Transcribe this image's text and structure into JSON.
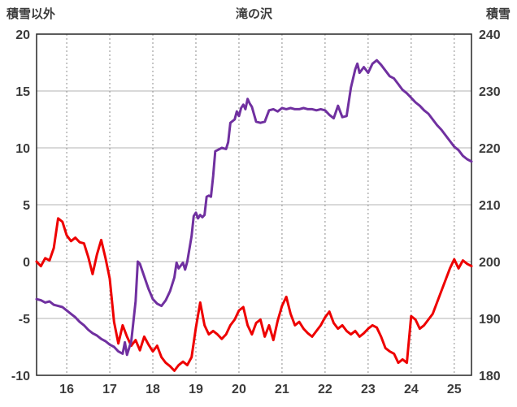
{
  "header": {
    "left_axis_title": "積雪以外",
    "chart_title": "滝の沢",
    "right_axis_title": "積雪"
  },
  "chart_data": {
    "type": "line",
    "title": "滝の沢",
    "left_axis": {
      "label": "積雪以外",
      "ticks": [
        20,
        15,
        10,
        5,
        0,
        -5,
        -10
      ],
      "range": [
        -10,
        20
      ]
    },
    "right_axis": {
      "label": "積雪",
      "ticks": [
        240,
        230,
        220,
        210,
        200,
        190,
        180
      ],
      "range": [
        180,
        240
      ]
    },
    "x_axis": {
      "ticks": [
        16,
        17,
        18,
        19,
        20,
        21,
        22,
        23,
        24,
        25
      ],
      "range": [
        15.3,
        25.4
      ]
    },
    "grid": {
      "horizontal": "solid",
      "vertical": "dashed"
    },
    "style": {
      "h_grid": "#b3b3b3",
      "v_grid": "#8c8c8c",
      "border": "#262626",
      "text": "#3b3b3b",
      "background": "#ffffff"
    },
    "series": [
      {
        "name": "積雪以外",
        "axis": "left",
        "color": "#ee0000",
        "x_start": 15.3,
        "x_step": 0.1,
        "values": [
          0.0,
          -0.4,
          0.3,
          0.1,
          1.2,
          3.8,
          3.5,
          2.3,
          1.8,
          2.1,
          1.7,
          1.6,
          0.4,
          -1.1,
          0.6,
          1.9,
          0.3,
          -1.5,
          -5.3,
          -7.2,
          -5.6,
          -6.6,
          -7.4,
          -6.9,
          -7.8,
          -6.6,
          -7.3,
          -7.9,
          -7.4,
          -8.4,
          -8.9,
          -9.2,
          -9.6,
          -9.1,
          -8.8,
          -9.1,
          -8.4,
          -5.8,
          -3.6,
          -5.6,
          -6.4,
          -6.1,
          -6.4,
          -6.8,
          -6.4,
          -5.6,
          -5.1,
          -4.3,
          -4.0,
          -5.6,
          -6.4,
          -5.4,
          -5.1,
          -6.6,
          -5.6,
          -6.9,
          -5.2,
          -3.9,
          -3.1,
          -4.6,
          -5.6,
          -5.3,
          -5.9,
          -6.3,
          -6.6,
          -6.1,
          -5.6,
          -4.9,
          -4.4,
          -5.4,
          -5.9,
          -5.6,
          -6.1,
          -6.4,
          -6.1,
          -6.6,
          -6.3,
          -5.9,
          -5.6,
          -5.8,
          -6.6,
          -7.6,
          -7.9,
          -8.1,
          -8.9,
          -8.6,
          -8.9,
          -4.8,
          -5.1,
          -5.9,
          -5.6,
          -5.1,
          -4.6,
          -3.6,
          -2.6,
          -1.6,
          -0.6,
          0.2,
          -0.6,
          0.1,
          -0.2,
          -0.4
        ]
      },
      {
        "name": "積雪",
        "axis": "right",
        "color": "#7030a0",
        "x": [
          15.3,
          15.4,
          15.5,
          15.6,
          15.7,
          15.8,
          15.9,
          16.0,
          16.1,
          16.2,
          16.3,
          16.4,
          16.5,
          16.6,
          16.7,
          16.8,
          16.9,
          17.0,
          17.1,
          17.2,
          17.3,
          17.35,
          17.4,
          17.5,
          17.6,
          17.65,
          17.7,
          17.8,
          17.9,
          18.0,
          18.1,
          18.2,
          18.3,
          18.4,
          18.5,
          18.55,
          18.6,
          18.7,
          18.75,
          18.8,
          18.9,
          18.95,
          19.0,
          19.05,
          19.1,
          19.15,
          19.2,
          19.25,
          19.3,
          19.35,
          19.4,
          19.45,
          19.5,
          19.6,
          19.7,
          19.75,
          19.8,
          19.9,
          19.95,
          20.0,
          20.05,
          20.1,
          20.15,
          20.2,
          20.25,
          20.3,
          20.4,
          20.5,
          20.6,
          20.7,
          20.8,
          20.9,
          21.0,
          21.1,
          21.2,
          21.3,
          21.4,
          21.5,
          21.6,
          21.7,
          21.8,
          21.9,
          22.0,
          22.1,
          22.2,
          22.3,
          22.4,
          22.5,
          22.6,
          22.7,
          22.75,
          22.8,
          22.9,
          23.0,
          23.1,
          23.2,
          23.3,
          23.4,
          23.5,
          23.6,
          23.7,
          23.8,
          23.9,
          24.0,
          24.1,
          24.2,
          24.3,
          24.4,
          24.5,
          24.6,
          24.7,
          24.8,
          24.9,
          25.0,
          25.1,
          25.2,
          25.3,
          25.4
        ],
        "values": [
          193.4,
          193.2,
          192.8,
          193.0,
          192.4,
          192.2,
          192.0,
          191.4,
          190.8,
          190.2,
          189.4,
          188.8,
          188.0,
          187.4,
          187.0,
          186.4,
          186.0,
          185.4,
          185.0,
          184.2,
          183.8,
          185.8,
          183.6,
          186.0,
          193.0,
          200.0,
          199.6,
          197.4,
          195.2,
          193.4,
          192.6,
          192.2,
          193.2,
          194.8,
          197.2,
          199.8,
          198.8,
          199.8,
          198.6,
          200.0,
          204.5,
          208.0,
          208.6,
          207.6,
          208.2,
          207.8,
          208.2,
          211.4,
          211.6,
          211.4,
          215.0,
          219.4,
          219.6,
          220.0,
          219.8,
          221.0,
          224.4,
          225.0,
          226.4,
          225.6,
          227.0,
          227.6,
          226.8,
          228.6,
          227.8,
          227.2,
          224.6,
          224.4,
          224.6,
          226.6,
          226.8,
          226.4,
          227.0,
          226.8,
          227.0,
          226.8,
          226.8,
          227.0,
          226.8,
          226.8,
          226.6,
          226.8,
          226.6,
          225.8,
          225.2,
          227.4,
          225.4,
          225.6,
          230.6,
          233.8,
          234.8,
          233.2,
          234.2,
          233.2,
          234.8,
          235.4,
          234.6,
          233.6,
          232.6,
          232.2,
          231.2,
          230.2,
          229.6,
          228.8,
          228.0,
          227.4,
          226.6,
          226.0,
          225.0,
          224.0,
          223.2,
          222.2,
          221.2,
          220.2,
          219.6,
          218.6,
          218.0,
          217.6
        ]
      }
    ]
  }
}
